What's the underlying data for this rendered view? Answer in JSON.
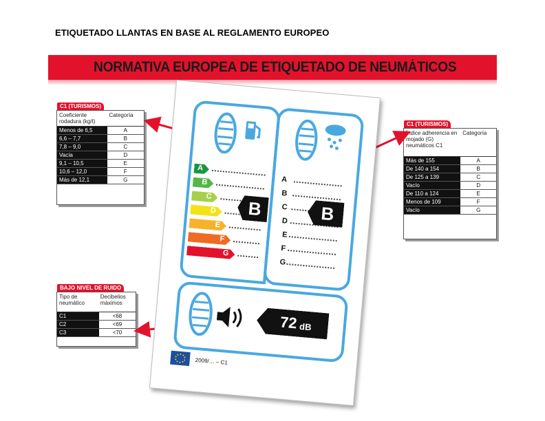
{
  "page_title": "ETIQUETADO LLANTAS EN BASE AL REGLAMENTO EUROPEO",
  "banner_title": "NORMATIVA EUROPEA DE ETIQUETADO DE NEUMÁTICOS",
  "fuel_table": {
    "tab": "C1 (TURISMOS)",
    "col1": "Coeficiente rodadura (kg/t)",
    "col2": "Categoría",
    "rows": [
      [
        "Menos de 6,5",
        "A"
      ],
      [
        "6,6 – 7,7",
        "B"
      ],
      [
        "7,8 – 9,0",
        "C"
      ],
      [
        "Vacía",
        "D"
      ],
      [
        "9,1 – 10,5",
        "E"
      ],
      [
        "10,6 – 12,0",
        "F"
      ],
      [
        "Más de 12,1",
        "G"
      ]
    ]
  },
  "wet_table": {
    "tab": "C1 (TURISMOS)",
    "col1": "Índice adherencia en mojado (G) neumáticos C1",
    "col2": "Categoría",
    "rows": [
      [
        "Más de 155",
        "A"
      ],
      [
        "De 140 a 154",
        "B"
      ],
      [
        "De 125 a 139",
        "C"
      ],
      [
        "Vacío",
        "D"
      ],
      [
        "De 110 a 124",
        "E"
      ],
      [
        "Menos de 109",
        "F"
      ],
      [
        "Vacío",
        "G"
      ]
    ]
  },
  "noise_table": {
    "tab": "BAJO NIVEL DE RUIDO",
    "col1": "Tipo de neumático",
    "col2": "Decibelios máximos",
    "rows": [
      [
        "C1",
        "<68"
      ],
      [
        "C2",
        "<69"
      ],
      [
        "C3",
        "<70"
      ]
    ]
  },
  "label": {
    "fuel_bands": [
      {
        "letter": "A",
        "color": "#1a9641"
      },
      {
        "letter": "B",
        "color": "#52b848"
      },
      {
        "letter": "C",
        "color": "#a6d04a"
      },
      {
        "letter": "D",
        "color": "#f2e318"
      },
      {
        "letter": "E",
        "color": "#f7b22c"
      },
      {
        "letter": "F",
        "color": "#ef6b24"
      },
      {
        "letter": "G",
        "color": "#e3122c"
      }
    ],
    "fuel_grade": "B",
    "wet_letters": [
      "A",
      "B",
      "C",
      "D",
      "E",
      "F",
      "G"
    ],
    "wet_grade": "B",
    "noise_value": "72",
    "noise_unit": "dB",
    "footer": "2009/… – C1",
    "accent": "#4aa8e0"
  }
}
